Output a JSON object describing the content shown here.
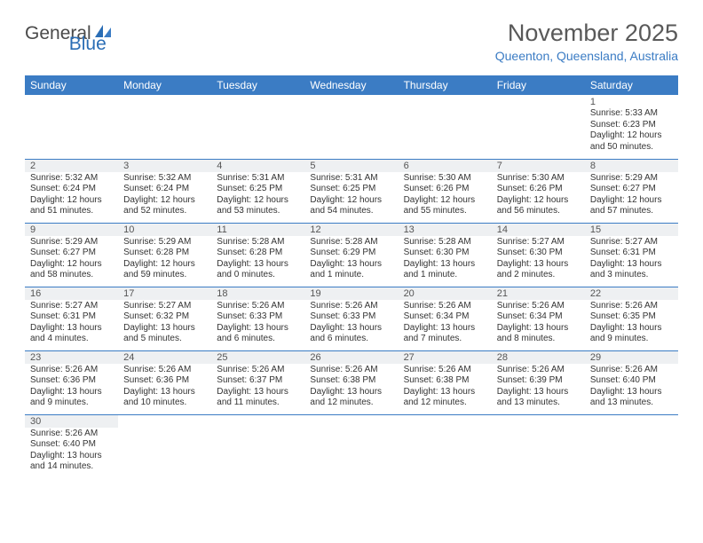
{
  "brand": {
    "name1": "General",
    "name2": "Blue"
  },
  "title": "November 2025",
  "subtitle": "Queenton, Queensland, Australia",
  "colors": {
    "header_bg": "#3b7cc4",
    "header_text": "#ffffff",
    "title_color": "#595959",
    "subtitle_color": "#3b7cc4",
    "daynum_band": "#eef0f2",
    "border": "#3b7cc4"
  },
  "day_headers": [
    "Sunday",
    "Monday",
    "Tuesday",
    "Wednesday",
    "Thursday",
    "Friday",
    "Saturday"
  ],
  "weeks": [
    [
      null,
      null,
      null,
      null,
      null,
      null,
      {
        "n": "1",
        "sunrise": "5:33 AM",
        "sunset": "6:23 PM",
        "daylight": "12 hours and 50 minutes."
      }
    ],
    [
      {
        "n": "2",
        "sunrise": "5:32 AM",
        "sunset": "6:24 PM",
        "daylight": "12 hours and 51 minutes."
      },
      {
        "n": "3",
        "sunrise": "5:32 AM",
        "sunset": "6:24 PM",
        "daylight": "12 hours and 52 minutes."
      },
      {
        "n": "4",
        "sunrise": "5:31 AM",
        "sunset": "6:25 PM",
        "daylight": "12 hours and 53 minutes."
      },
      {
        "n": "5",
        "sunrise": "5:31 AM",
        "sunset": "6:25 PM",
        "daylight": "12 hours and 54 minutes."
      },
      {
        "n": "6",
        "sunrise": "5:30 AM",
        "sunset": "6:26 PM",
        "daylight": "12 hours and 55 minutes."
      },
      {
        "n": "7",
        "sunrise": "5:30 AM",
        "sunset": "6:26 PM",
        "daylight": "12 hours and 56 minutes."
      },
      {
        "n": "8",
        "sunrise": "5:29 AM",
        "sunset": "6:27 PM",
        "daylight": "12 hours and 57 minutes."
      }
    ],
    [
      {
        "n": "9",
        "sunrise": "5:29 AM",
        "sunset": "6:27 PM",
        "daylight": "12 hours and 58 minutes."
      },
      {
        "n": "10",
        "sunrise": "5:29 AM",
        "sunset": "6:28 PM",
        "daylight": "12 hours and 59 minutes."
      },
      {
        "n": "11",
        "sunrise": "5:28 AM",
        "sunset": "6:28 PM",
        "daylight": "13 hours and 0 minutes."
      },
      {
        "n": "12",
        "sunrise": "5:28 AM",
        "sunset": "6:29 PM",
        "daylight": "13 hours and 1 minute."
      },
      {
        "n": "13",
        "sunrise": "5:28 AM",
        "sunset": "6:30 PM",
        "daylight": "13 hours and 1 minute."
      },
      {
        "n": "14",
        "sunrise": "5:27 AM",
        "sunset": "6:30 PM",
        "daylight": "13 hours and 2 minutes."
      },
      {
        "n": "15",
        "sunrise": "5:27 AM",
        "sunset": "6:31 PM",
        "daylight": "13 hours and 3 minutes."
      }
    ],
    [
      {
        "n": "16",
        "sunrise": "5:27 AM",
        "sunset": "6:31 PM",
        "daylight": "13 hours and 4 minutes."
      },
      {
        "n": "17",
        "sunrise": "5:27 AM",
        "sunset": "6:32 PM",
        "daylight": "13 hours and 5 minutes."
      },
      {
        "n": "18",
        "sunrise": "5:26 AM",
        "sunset": "6:33 PM",
        "daylight": "13 hours and 6 minutes."
      },
      {
        "n": "19",
        "sunrise": "5:26 AM",
        "sunset": "6:33 PM",
        "daylight": "13 hours and 6 minutes."
      },
      {
        "n": "20",
        "sunrise": "5:26 AM",
        "sunset": "6:34 PM",
        "daylight": "13 hours and 7 minutes."
      },
      {
        "n": "21",
        "sunrise": "5:26 AM",
        "sunset": "6:34 PM",
        "daylight": "13 hours and 8 minutes."
      },
      {
        "n": "22",
        "sunrise": "5:26 AM",
        "sunset": "6:35 PM",
        "daylight": "13 hours and 9 minutes."
      }
    ],
    [
      {
        "n": "23",
        "sunrise": "5:26 AM",
        "sunset": "6:36 PM",
        "daylight": "13 hours and 9 minutes."
      },
      {
        "n": "24",
        "sunrise": "5:26 AM",
        "sunset": "6:36 PM",
        "daylight": "13 hours and 10 minutes."
      },
      {
        "n": "25",
        "sunrise": "5:26 AM",
        "sunset": "6:37 PM",
        "daylight": "13 hours and 11 minutes."
      },
      {
        "n": "26",
        "sunrise": "5:26 AM",
        "sunset": "6:38 PM",
        "daylight": "13 hours and 12 minutes."
      },
      {
        "n": "27",
        "sunrise": "5:26 AM",
        "sunset": "6:38 PM",
        "daylight": "13 hours and 12 minutes."
      },
      {
        "n": "28",
        "sunrise": "5:26 AM",
        "sunset": "6:39 PM",
        "daylight": "13 hours and 13 minutes."
      },
      {
        "n": "29",
        "sunrise": "5:26 AM",
        "sunset": "6:40 PM",
        "daylight": "13 hours and 13 minutes."
      }
    ],
    [
      {
        "n": "30",
        "sunrise": "5:26 AM",
        "sunset": "6:40 PM",
        "daylight": "13 hours and 14 minutes."
      },
      null,
      null,
      null,
      null,
      null,
      null
    ]
  ],
  "labels": {
    "sunrise": "Sunrise:",
    "sunset": "Sunset:",
    "daylight": "Daylight:"
  }
}
